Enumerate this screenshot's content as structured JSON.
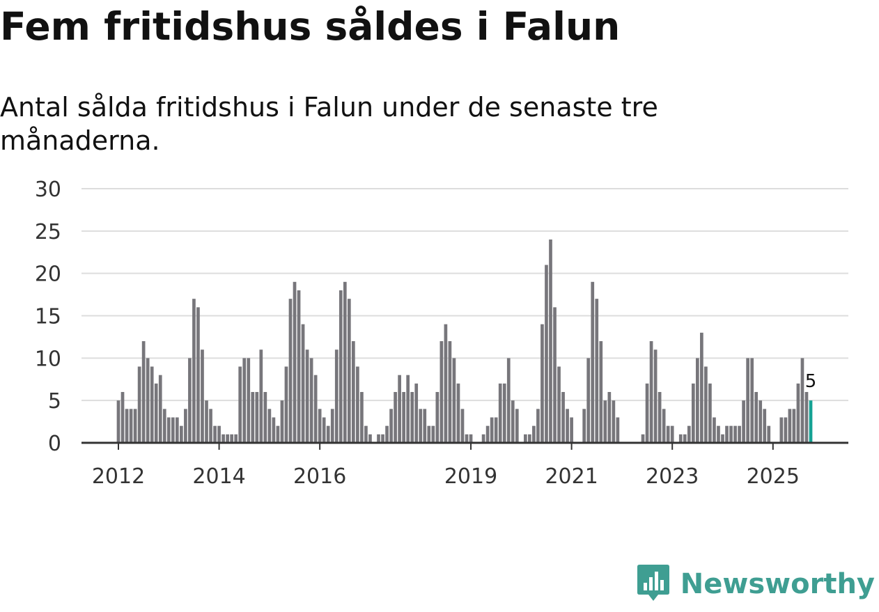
{
  "title": "Fem fritidshus såldes i Falun",
  "subtitle": "Antal sålda fritidshus i Falun under de senaste tre månaderna.",
  "brand": {
    "name": "Newsworthy",
    "color": "#3f9e92",
    "icon": "bar-chart-bubble-icon"
  },
  "colors": {
    "bar": "#77767b",
    "highlight": "#16a394",
    "grid": "#dddddd",
    "axis": "#333333",
    "text": "#333333"
  },
  "chart_data": {
    "type": "bar",
    "ylim": [
      0,
      30
    ],
    "yticks": [
      0,
      5,
      10,
      15,
      20,
      25,
      30
    ],
    "xlabel": "",
    "ylabel": "",
    "grid": true,
    "x_start": "2012-01",
    "xtick_labels": [
      {
        "label": "2012",
        "month": "2012-01"
      },
      {
        "label": "2014",
        "month": "2014-01"
      },
      {
        "label": "2016",
        "month": "2016-01"
      },
      {
        "label": "2019",
        "month": "2019-01"
      },
      {
        "label": "2021",
        "month": "2021-01"
      },
      {
        "label": "2023",
        "month": "2023-01"
      },
      {
        "label": "2025",
        "month": "2025-01"
      }
    ],
    "values": [
      5,
      6,
      4,
      4,
      4,
      9,
      12,
      10,
      9,
      7,
      8,
      4,
      3,
      3,
      3,
      2,
      4,
      10,
      17,
      16,
      11,
      5,
      4,
      2,
      2,
      1,
      1,
      1,
      1,
      9,
      10,
      10,
      6,
      6,
      11,
      6,
      4,
      3,
      2,
      5,
      9,
      17,
      19,
      18,
      14,
      11,
      10,
      8,
      4,
      3,
      2,
      4,
      11,
      18,
      19,
      17,
      12,
      9,
      6,
      2,
      1,
      0,
      1,
      1,
      2,
      4,
      6,
      8,
      6,
      8,
      6,
      7,
      4,
      4,
      2,
      2,
      6,
      12,
      14,
      12,
      10,
      7,
      4,
      1,
      1,
      0,
      0,
      1,
      2,
      3,
      3,
      7,
      7,
      10,
      5,
      4,
      0,
      1,
      1,
      2,
      4,
      14,
      21,
      24,
      16,
      9,
      6,
      4,
      3,
      0,
      0,
      4,
      10,
      19,
      17,
      12,
      5,
      6,
      5,
      3,
      0,
      0,
      0,
      0,
      0,
      1,
      7,
      12,
      11,
      6,
      4,
      2,
      2,
      0,
      1,
      1,
      2,
      7,
      10,
      13,
      9,
      7,
      3,
      2,
      1,
      2,
      2,
      2,
      2,
      5,
      10,
      10,
      6,
      5,
      4,
      2,
      0,
      0,
      3,
      3,
      4,
      4,
      7,
      10,
      6,
      5
    ],
    "highlight_index": 165,
    "annotation": {
      "label": "5",
      "index": 165
    }
  }
}
